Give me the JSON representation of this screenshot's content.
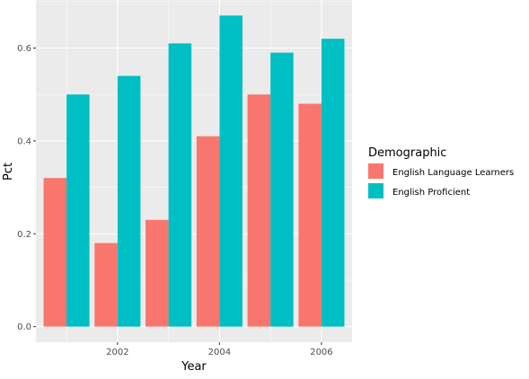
{
  "chart_data": {
    "type": "bar",
    "x": [
      2001,
      2002,
      2003,
      2004,
      2005,
      2006
    ],
    "series": [
      {
        "name": "English Language Learners",
        "color": "#F8766D",
        "values": [
          0.32,
          0.18,
          0.23,
          0.41,
          0.5,
          0.48
        ]
      },
      {
        "name": "English Proficient",
        "color": "#00BFC4",
        "values": [
          0.5,
          0.54,
          0.61,
          0.67,
          0.59,
          0.62
        ]
      }
    ],
    "xlabel": "Year",
    "ylabel": "Pct",
    "x_ticks": [
      "2002",
      "2004",
      "2006"
    ],
    "y_ticks": [
      "0.0",
      "0.2",
      "0.4",
      "0.6"
    ],
    "ylim": [
      -0.0335,
      0.7035
    ],
    "xlim": [
      2000.4,
      2006.6
    ],
    "legend": {
      "title": "Demographic",
      "position": "right"
    },
    "grid": true
  }
}
